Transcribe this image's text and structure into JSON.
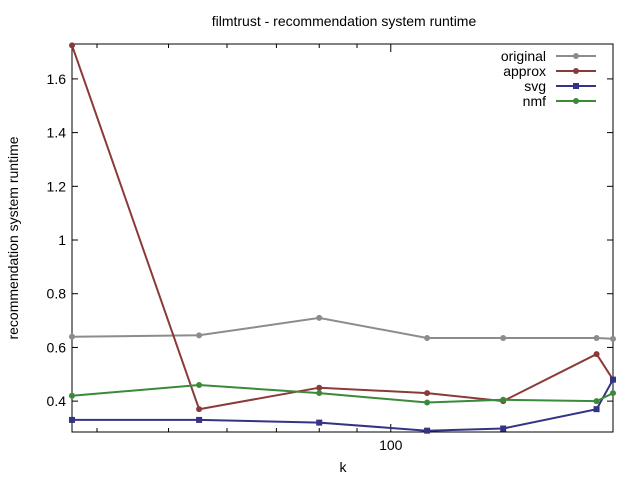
{
  "chart_data": {
    "type": "line",
    "title": "filmtrust - recommendation system runtime",
    "xlabel": "k",
    "ylabel": "recommendation system runtime",
    "xscale": "log",
    "xlim": [
      37,
      200
    ],
    "ylim": [
      0.285,
      1.73
    ],
    "x_ticks": [
      100
    ],
    "x_tick_labels": [
      "100"
    ],
    "y_ticks": [
      0.4,
      0.6,
      0.8,
      1.0,
      1.2,
      1.4,
      1.6
    ],
    "y_tick_labels": [
      "0.4",
      "0.6",
      "0.8",
      "1",
      "1.2",
      "1.4",
      "1.6"
    ],
    "grid": false,
    "legend_position": "top-right",
    "series": [
      {
        "name": "original",
        "color": "#8c8c8c",
        "marker": "circle",
        "points": [
          [
            37,
            0.64
          ],
          [
            55,
            0.645
          ],
          [
            80,
            0.71
          ],
          [
            112,
            0.635
          ],
          [
            142,
            0.635
          ],
          [
            190,
            0.635
          ],
          [
            200,
            0.632
          ]
        ]
      },
      {
        "name": "approx",
        "color": "#8b3a3a",
        "marker": "circle",
        "points": [
          [
            37,
            1.725
          ],
          [
            55,
            0.37
          ],
          [
            80,
            0.45
          ],
          [
            112,
            0.43
          ],
          [
            142,
            0.4
          ],
          [
            190,
            0.575
          ],
          [
            200,
            0.48
          ]
        ]
      },
      {
        "name": "svg",
        "color": "#343484",
        "marker": "square",
        "points": [
          [
            37,
            0.33
          ],
          [
            55,
            0.33
          ],
          [
            80,
            0.32
          ],
          [
            112,
            0.29
          ],
          [
            142,
            0.298
          ],
          [
            190,
            0.37
          ],
          [
            200,
            0.48
          ]
        ]
      },
      {
        "name": "nmf",
        "color": "#3a8a3a",
        "marker": "circle",
        "points": [
          [
            37,
            0.42
          ],
          [
            55,
            0.46
          ],
          [
            80,
            0.43
          ],
          [
            112,
            0.395
          ],
          [
            142,
            0.405
          ],
          [
            190,
            0.4
          ],
          [
            200,
            0.43
          ]
        ]
      }
    ]
  }
}
